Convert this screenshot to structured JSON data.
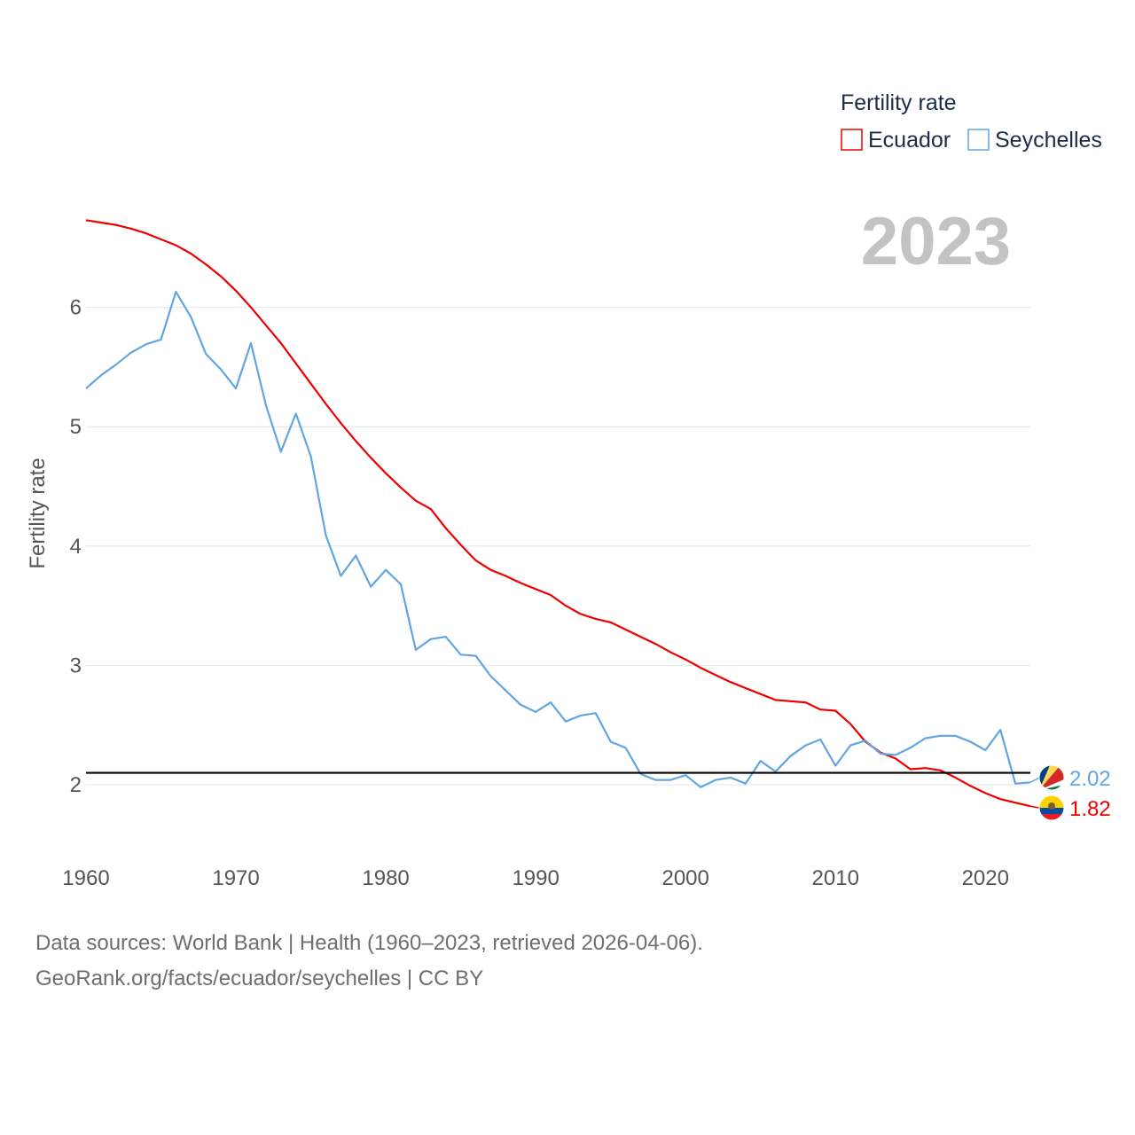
{
  "chart_data": {
    "type": "line",
    "title": "Fertility rate",
    "ylabel": "Fertility rate",
    "xlabel": "",
    "xlim": [
      1960,
      2023
    ],
    "ylim": [
      1.5,
      7
    ],
    "x_ticks": [
      1960,
      1970,
      1980,
      1990,
      2000,
      2010,
      2020
    ],
    "y_ticks": [
      2,
      3,
      4,
      5,
      6
    ],
    "reference_line": 2.1,
    "current_year": "2023",
    "legend_title": "Fertility rate",
    "legend_position": "top-right",
    "x": [
      1960,
      1961,
      1962,
      1963,
      1964,
      1965,
      1966,
      1967,
      1968,
      1969,
      1970,
      1971,
      1972,
      1973,
      1974,
      1975,
      1976,
      1977,
      1978,
      1979,
      1980,
      1981,
      1982,
      1983,
      1984,
      1985,
      1986,
      1987,
      1988,
      1989,
      1990,
      1991,
      1992,
      1993,
      1994,
      1995,
      1996,
      1997,
      1998,
      1999,
      2000,
      2001,
      2002,
      2003,
      2004,
      2005,
      2006,
      2007,
      2008,
      2009,
      2010,
      2011,
      2012,
      2013,
      2014,
      2015,
      2016,
      2017,
      2018,
      2019,
      2020,
      2021,
      2022,
      2023
    ],
    "series": [
      {
        "name": "Ecuador",
        "color": "#ee0000",
        "end_label": "1.82",
        "values": [
          6.73,
          6.71,
          6.69,
          6.66,
          6.62,
          6.57,
          6.52,
          6.45,
          6.36,
          6.26,
          6.14,
          6.0,
          5.85,
          5.7,
          5.53,
          5.36,
          5.19,
          5.03,
          4.88,
          4.74,
          4.61,
          4.49,
          4.38,
          4.31,
          4.15,
          4.01,
          3.88,
          3.8,
          3.75,
          3.69,
          3.64,
          3.59,
          3.5,
          3.43,
          3.39,
          3.36,
          3.3,
          3.24,
          3.18,
          3.11,
          3.05,
          2.98,
          2.92,
          2.86,
          2.81,
          2.76,
          2.71,
          2.7,
          2.69,
          2.63,
          2.62,
          2.51,
          2.36,
          2.27,
          2.22,
          2.13,
          2.14,
          2.12,
          2.06,
          1.99,
          1.93,
          1.88,
          1.85,
          1.82
        ]
      },
      {
        "name": "Seychelles",
        "color": "#61a5e3",
        "end_label": "2.02",
        "values": [
          5.32,
          5.43,
          5.52,
          5.62,
          5.69,
          5.73,
          6.13,
          5.92,
          5.61,
          5.48,
          5.32,
          5.7,
          5.18,
          4.79,
          5.11,
          4.75,
          4.09,
          3.75,
          3.92,
          3.66,
          3.8,
          3.68,
          3.13,
          3.22,
          3.24,
          3.09,
          3.08,
          2.91,
          2.79,
          2.67,
          2.61,
          2.69,
          2.53,
          2.58,
          2.6,
          2.36,
          2.31,
          2.09,
          2.04,
          2.04,
          2.08,
          1.98,
          2.04,
          2.06,
          2.01,
          2.2,
          2.11,
          2.24,
          2.33,
          2.38,
          2.16,
          2.33,
          2.37,
          2.26,
          2.25,
          2.31,
          2.39,
          2.41,
          2.41,
          2.36,
          2.29,
          2.46,
          2.01,
          2.02
        ]
      }
    ]
  },
  "footer": {
    "line1": "Data sources: World Bank | Health (1960–2023, retrieved 2026-04-06).",
    "line2": "GeoRank.org/facts/ecuador/seychelles | CC BY"
  },
  "flags": {
    "ecuador": "ecuador-flag-icon",
    "seychelles": "seychelles-flag-icon"
  }
}
